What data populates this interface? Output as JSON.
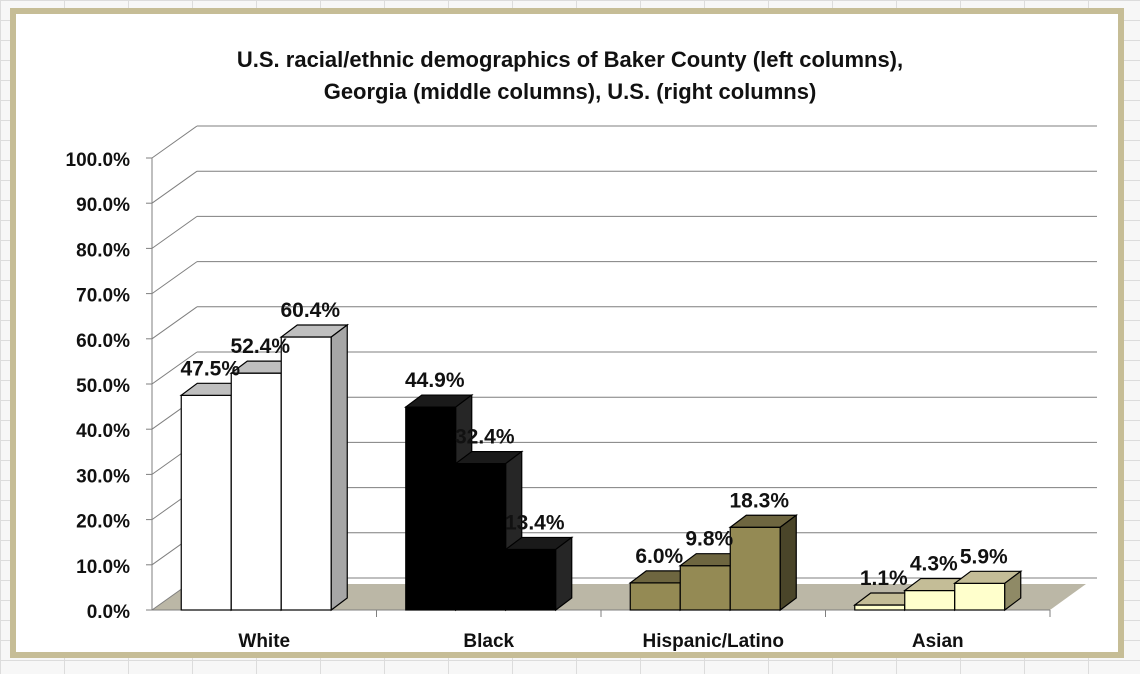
{
  "chart_data": {
    "type": "bar",
    "title_lines": [
      "U.S. racial/ethnic demographics of Baker County (left columns),",
      "Georgia (middle columns), U.S. (right columns)"
    ],
    "categories": [
      "White",
      "Black",
      "Hispanic/Latino",
      "Asian"
    ],
    "series": [
      {
        "values": [
          47.5,
          44.9,
          6.0,
          1.1
        ]
      },
      {
        "values": [
          52.4,
          32.4,
          9.8,
          4.3
        ]
      },
      {
        "values": [
          60.4,
          13.4,
          18.3,
          5.9
        ]
      }
    ],
    "data_labels": [
      [
        "47.5%",
        "52.4%",
        "60.4%"
      ],
      [
        "44.9%",
        "32.4%",
        "13.4%"
      ],
      [
        "6.0%",
        "9.8%",
        "18.3%"
      ],
      [
        "1.1%",
        "4.3%",
        "5.9%"
      ]
    ],
    "y_ticks": [
      "0.0%",
      "10.0%",
      "20.0%",
      "30.0%",
      "40.0%",
      "50.0%",
      "60.0%",
      "70.0%",
      "80.0%",
      "90.0%",
      "100.0%"
    ],
    "ylim": [
      0,
      100
    ],
    "grid": true,
    "legend": "none",
    "category_colors": {
      "White": {
        "front": "#ffffff",
        "top": "#bfbfbf",
        "side": "#a6a6a6"
      },
      "Black": {
        "front": "#000000",
        "top": "#1a1a1a",
        "side": "#262626"
      },
      "Hispanic/Latino": {
        "front": "#948a54",
        "top": "#6e6640",
        "side": "#4a4529"
      },
      "Asian": {
        "front": "#ffffcc",
        "top": "#c4bd97",
        "side": "#8f8a66"
      }
    }
  }
}
